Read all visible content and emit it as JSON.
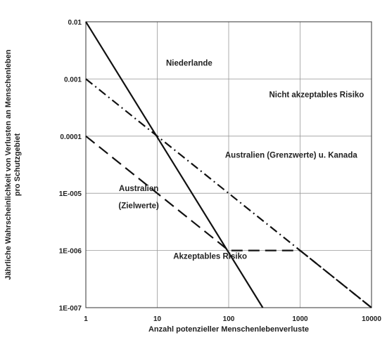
{
  "chart_data": {
    "type": "line",
    "x_scale": "log",
    "y_scale": "log",
    "xlim": [
      1,
      10000
    ],
    "ylim": [
      1e-07,
      0.01
    ],
    "grid": true,
    "xlabel": "Anzahl potenzieller Menschenlebenverluste",
    "ylabel_lines": [
      "Jährliche Wahrscheinlichkeit von Verlusten an Menschenleben",
      "pro Schutzgebiet"
    ],
    "x_ticks": [
      {
        "value": 1,
        "label": "1"
      },
      {
        "value": 10,
        "label": "10"
      },
      {
        "value": 100,
        "label": "100"
      },
      {
        "value": 1000,
        "label": "1000"
      },
      {
        "value": 10000,
        "label": "10000"
      }
    ],
    "y_ticks": [
      {
        "value": 0.01,
        "label": "0.01"
      },
      {
        "value": 0.001,
        "label": "0.001"
      },
      {
        "value": 0.0001,
        "label": "0.0001"
      },
      {
        "value": 1e-05,
        "label": "1E-005"
      },
      {
        "value": 1e-06,
        "label": "1E-006"
      },
      {
        "value": 1e-07,
        "label": "1E-007"
      }
    ],
    "series": [
      {
        "style": "solid",
        "points": [
          [
            1,
            0.01
          ],
          [
            300,
            1e-07
          ]
        ]
      },
      {
        "style": "dash-dot",
        "points": [
          [
            1,
            0.001
          ],
          [
            10000,
            1e-07
          ]
        ]
      },
      {
        "style": "dashed",
        "points": [
          [
            1,
            0.0001
          ],
          [
            100,
            1e-06
          ],
          [
            1000,
            1e-06
          ],
          [
            10000,
            1e-07
          ]
        ]
      }
    ],
    "annotations": [
      {
        "text": "Niederlande",
        "x": 28,
        "y": 0.0017
      },
      {
        "text": "Nicht akzeptables Risiko",
        "x": 1700,
        "y": 0.00048
      },
      {
        "text": "Australien (Grenzwerte) u. Kanada",
        "x": 750,
        "y": 4.2e-05
      },
      {
        "text": "Australien",
        "x": 5.5,
        "y": 1.1e-05
      },
      {
        "text": "(Zielwerte)",
        "x": 5.5,
        "y": 5.5e-06
      },
      {
        "text": "Akzeptables Risiko",
        "x": 55,
        "y": 7.1e-07
      }
    ]
  }
}
